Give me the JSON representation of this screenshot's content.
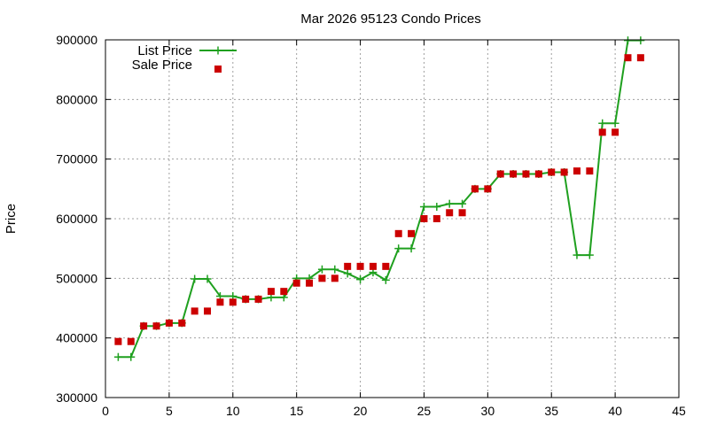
{
  "chart_data": {
    "type": "line",
    "title": "Mar 2026 95123 Condo Prices",
    "xlabel": "",
    "ylabel": "Price",
    "xlim": [
      0,
      45
    ],
    "ylim": [
      300000,
      900000
    ],
    "xticks": [
      0,
      5,
      10,
      15,
      20,
      25,
      30,
      35,
      40,
      45
    ],
    "yticks": [
      300000,
      400000,
      500000,
      600000,
      700000,
      800000,
      900000
    ],
    "grid": true,
    "legend_position": "top-left",
    "series": [
      {
        "name": "List Price",
        "style": "line-plus",
        "color": "#1fa01f",
        "x": [
          1,
          2,
          3,
          4,
          5,
          6,
          7,
          8,
          9,
          10,
          11,
          12,
          13,
          14,
          15,
          16,
          17,
          18,
          19,
          20,
          21,
          22,
          23,
          24,
          25,
          26,
          27,
          28,
          29,
          30,
          31,
          32,
          33,
          34,
          35,
          36,
          37,
          38,
          39,
          40,
          41,
          42
        ],
        "values": [
          368000,
          368000,
          420000,
          420000,
          425000,
          425000,
          499000,
          499000,
          470000,
          470000,
          465000,
          465000,
          468000,
          468000,
          500000,
          500000,
          515000,
          515000,
          508000,
          498000,
          510000,
          497000,
          550000,
          550000,
          620000,
          620000,
          625000,
          625000,
          650000,
          650000,
          675000,
          675000,
          675000,
          675000,
          678000,
          678000,
          539000,
          539000,
          760000,
          760000,
          899000,
          899000
        ]
      },
      {
        "name": "Sale Price",
        "style": "square",
        "color": "#cc0000",
        "x": [
          1,
          2,
          3,
          4,
          5,
          6,
          7,
          8,
          9,
          10,
          11,
          12,
          13,
          14,
          15,
          16,
          17,
          18,
          19,
          20,
          21,
          22,
          23,
          24,
          25,
          26,
          27,
          28,
          29,
          30,
          31,
          32,
          33,
          34,
          35,
          36,
          37,
          38,
          39,
          40,
          41,
          42
        ],
        "values": [
          394000,
          394000,
          420000,
          420000,
          425000,
          425000,
          445000,
          445000,
          460000,
          460000,
          465000,
          465000,
          478000,
          478000,
          492000,
          492000,
          500000,
          500000,
          520000,
          520000,
          520000,
          520000,
          575000,
          575000,
          600000,
          600000,
          610000,
          610000,
          650000,
          650000,
          675000,
          675000,
          675000,
          675000,
          678000,
          678000,
          680000,
          680000,
          745000,
          745000,
          870000,
          870000
        ]
      }
    ]
  }
}
